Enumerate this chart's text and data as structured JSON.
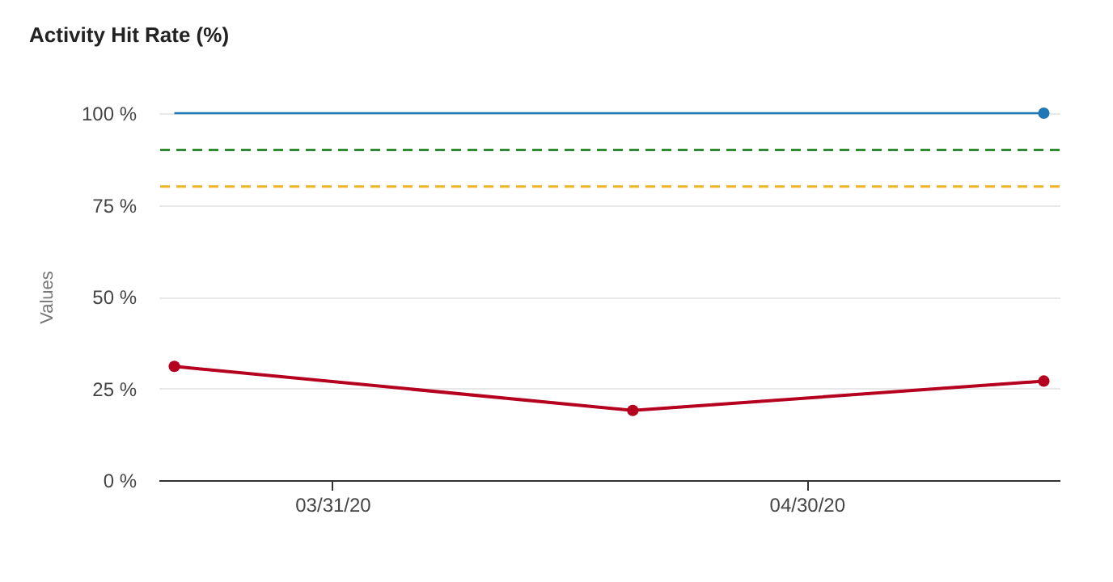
{
  "chart_data": {
    "type": "line",
    "title": "Activity Hit Rate (%)",
    "ylabel": "Values",
    "xlim": [
      "2020-03-20",
      "2020-05-16"
    ],
    "xticks": [
      {
        "value": "2020-03-31",
        "label": "03/31/20"
      },
      {
        "value": "2020-04-30",
        "label": "04/30/20"
      }
    ],
    "ylim": [
      0,
      100
    ],
    "yticks": [
      {
        "value": 0,
        "label": "0 %"
      },
      {
        "value": 25,
        "label": "25 %"
      },
      {
        "value": 50,
        "label": "50 %"
      },
      {
        "value": 75,
        "label": "75 %"
      },
      {
        "value": 100,
        "label": "100 %"
      }
    ],
    "grid": "y",
    "series": [
      {
        "color": "#1f77b4",
        "marker": "none",
        "x": [
          "2020-03-21",
          "2020-05-15"
        ],
        "values": [
          100,
          100
        ]
      },
      {
        "type": "scatter",
        "color": "#1f77b4",
        "marker": "circle",
        "x": [
          "2020-05-15"
        ],
        "values": [
          100
        ]
      },
      {
        "color": "#b5001f",
        "marker": "circle",
        "x": [
          "2020-03-21",
          "2020-04-19",
          "2020-05-15"
        ],
        "values": [
          31,
          19,
          27
        ]
      }
    ],
    "ref_lines": [
      {
        "axis": "y",
        "value": 90,
        "label": null,
        "color": "#2e8b2e",
        "line_style": "dashed"
      },
      {
        "axis": "y",
        "value": 80,
        "label": null,
        "color": "#f0b323",
        "line_style": "dashed"
      }
    ]
  }
}
